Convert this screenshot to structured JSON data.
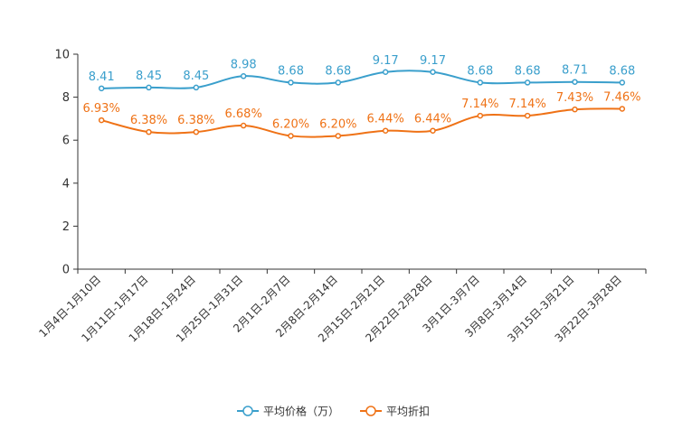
{
  "chart_data": {
    "type": "line",
    "categories": [
      "1月4日-1月10日",
      "1月11日-1月17日",
      "1月18日-1月24日",
      "1月25日-1月31日",
      "2月1日-2月7日",
      "2月8日-2月14日",
      "2月15日-2月21日",
      "2月22日-2月28日",
      "3月1日-3月7日",
      "3月8日-3月14日",
      "3月15日-3月21日",
      "3月22日-3月28日"
    ],
    "series": [
      {
        "name": "平均价格（万）",
        "color": "#3a9fcc",
        "values": [
          8.41,
          8.45,
          8.45,
          8.98,
          8.68,
          8.68,
          9.17,
          9.17,
          8.68,
          8.68,
          8.71,
          8.68
        ],
        "labels": [
          "8.41",
          "8.45",
          "8.45",
          "8.98",
          "8.68",
          "8.68",
          "9.17",
          "9.17",
          "8.68",
          "8.68",
          "8.71",
          "8.68"
        ]
      },
      {
        "name": "平均折扣",
        "color": "#ef7216",
        "values": [
          6.93,
          6.38,
          6.38,
          6.68,
          6.2,
          6.2,
          6.44,
          6.44,
          7.14,
          7.14,
          7.43,
          7.46
        ],
        "labels": [
          "6.93%",
          "6.38%",
          "6.38%",
          "6.68%",
          "6.20%",
          "6.20%",
          "6.44%",
          "6.44%",
          "7.14%",
          "7.14%",
          "7.43%",
          "7.46%"
        ]
      }
    ],
    "yticks": [
      "0",
      "2",
      "4",
      "6",
      "8",
      "10"
    ],
    "ylim": [
      0,
      10
    ],
    "title": "",
    "xlabel": "",
    "ylabel": "",
    "legend_position": "bottom-center"
  }
}
